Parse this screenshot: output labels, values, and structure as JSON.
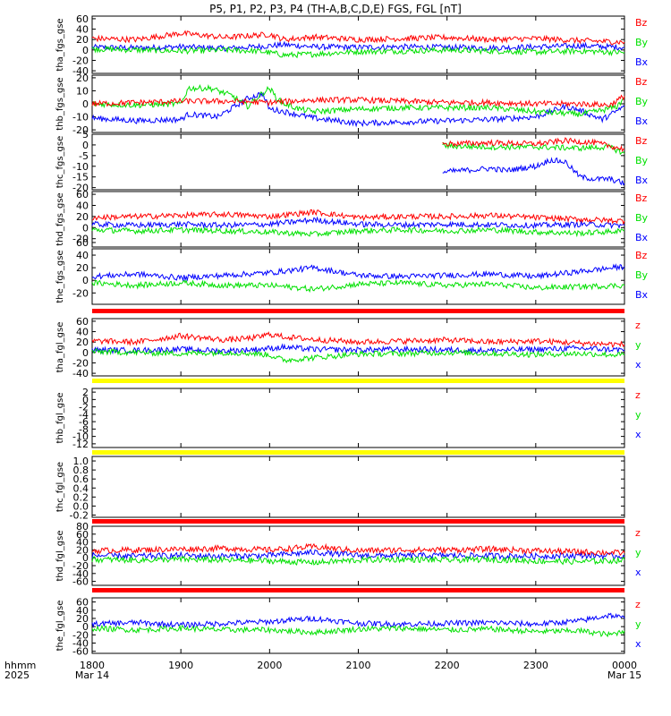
{
  "title": "P5, P1, P2, P3, P4 (TH-A,B,C,D,E) FGS, FGL [nT]",
  "time_axis": {
    "row_label_1": "hhmm",
    "row_label_2": "2025",
    "ticks": [
      {
        "hhmm": "1800",
        "date": "Mar 14"
      },
      {
        "hhmm": "1900",
        "date": ""
      },
      {
        "hhmm": "2000",
        "date": ""
      },
      {
        "hhmm": "2100",
        "date": ""
      },
      {
        "hhmm": "2200",
        "date": ""
      },
      {
        "hhmm": "2300",
        "date": ""
      },
      {
        "hhmm": "0000",
        "date": "Mar 15"
      }
    ]
  },
  "colors": {
    "z": "#ff0000",
    "y": "#00e000",
    "x": "#0000ff",
    "status_red": "#ff0000",
    "status_yellow": "#ffff00"
  },
  "chart_data": [
    {
      "type": "line",
      "ylabel": "tha_fgs_gse",
      "yticks": [
        "60",
        "40",
        "20",
        "0",
        "-20",
        "-40"
      ],
      "ylim": [
        -45,
        65
      ],
      "legend": [
        "Bz",
        "By",
        "Bx"
      ],
      "series": [
        {
          "name": "Bz",
          "x": [
            "1800",
            "1830",
            "1900",
            "1930",
            "1950",
            "2000",
            "2010",
            "2030",
            "2100",
            "2130",
            "2200",
            "2230",
            "2300",
            "2330",
            "0000"
          ],
          "values": [
            22,
            20,
            32,
            24,
            28,
            30,
            20,
            25,
            20,
            22,
            24,
            20,
            22,
            18,
            15
          ]
        },
        {
          "name": "By",
          "x": [
            "1800",
            "1830",
            "1900",
            "1930",
            "1950",
            "2000",
            "2010",
            "2030",
            "2100",
            "2130",
            "2200",
            "2230",
            "2300",
            "2330",
            "0000"
          ],
          "values": [
            2,
            0,
            -2,
            0,
            -2,
            -5,
            -10,
            -8,
            -3,
            -2,
            0,
            -2,
            -4,
            -2,
            -5
          ]
        },
        {
          "name": "Bx",
          "x": [
            "1800",
            "1830",
            "1900",
            "1930",
            "1950",
            "2000",
            "2010",
            "2030",
            "2100",
            "2130",
            "2200",
            "2230",
            "2300",
            "2330",
            "0000"
          ],
          "values": [
            5,
            4,
            6,
            3,
            6,
            8,
            10,
            6,
            5,
            6,
            5,
            4,
            6,
            8,
            5
          ]
        }
      ]
    },
    {
      "type": "line",
      "ylabel": "thb_fgs_gse",
      "yticks": [
        "20",
        "10",
        "0",
        "-10",
        "-20"
      ],
      "ylim": [
        -22,
        22
      ],
      "legend": [
        "Bz",
        "By",
        "Bx"
      ],
      "series": [
        {
          "name": "Bz",
          "x": [
            "1800",
            "1830",
            "1900",
            "1930",
            "2000",
            "2030",
            "2100",
            "2130",
            "2200",
            "2230",
            "2300",
            "2330",
            "2350",
            "0000"
          ],
          "values": [
            0,
            1,
            2,
            2,
            1,
            3,
            3,
            2,
            1,
            1,
            0,
            0,
            -1,
            6
          ]
        },
        {
          "name": "By",
          "x": [
            "1800",
            "1830",
            "1900",
            "1905",
            "1920",
            "1935",
            "1945",
            "1955",
            "2000",
            "2005",
            "2010",
            "2020",
            "2030",
            "2100",
            "2130",
            "2200",
            "2230",
            "2300",
            "2330",
            "2345",
            "2355",
            "0000"
          ],
          "values": [
            0,
            -1,
            0,
            12,
            12,
            6,
            -2,
            8,
            12,
            4,
            0,
            -4,
            -6,
            -4,
            -3,
            -3,
            -3,
            -6,
            -8,
            -5,
            -2,
            5
          ]
        },
        {
          "name": "Bx",
          "x": [
            "1800",
            "1830",
            "1900",
            "1905",
            "1925",
            "1945",
            "1955",
            "2000",
            "2010",
            "2030",
            "2100",
            "2130",
            "2200",
            "2230",
            "2300",
            "2320",
            "2330",
            "2345",
            "0000"
          ],
          "values": [
            -11,
            -13,
            -12,
            -8,
            -10,
            4,
            8,
            -4,
            -6,
            -11,
            -15,
            -14,
            -13,
            -12,
            -10,
            -2,
            -5,
            -12,
            -2
          ]
        }
      ]
    },
    {
      "type": "line",
      "ylabel": "thc_fgs_gse",
      "yticks": [
        "5",
        "0",
        "-5",
        "-10",
        "-15",
        "-20"
      ],
      "ylim": [
        -21,
        5
      ],
      "legend": [
        "Bz",
        "By",
        "Bx"
      ],
      "series": [
        {
          "name": "Bz",
          "x": [
            "2157",
            "2200",
            "2230",
            "2300",
            "2320",
            "2340",
            "0000"
          ],
          "values": [
            0.5,
            0.5,
            1,
            0.5,
            2,
            1,
            -2
          ]
        },
        {
          "name": "By",
          "x": [
            "2157",
            "2200",
            "2230",
            "2300",
            "2330",
            "2350",
            "0000"
          ],
          "values": [
            0,
            -0.5,
            -1,
            -1,
            -1.5,
            -1,
            -4
          ]
        },
        {
          "name": "Bx",
          "x": [
            "2157",
            "2200",
            "2230",
            "2240",
            "2300",
            "2310",
            "2320",
            "2330",
            "2340",
            "2350",
            "0000"
          ],
          "values": [
            -13,
            -12.5,
            -11,
            -12,
            -10,
            -7,
            -8,
            -15,
            -16,
            -16,
            -18
          ]
        }
      ]
    },
    {
      "type": "line",
      "ylabel": "thd_fgs_gse",
      "yticks": [
        "60",
        "40",
        "20",
        "0",
        "-20"
      ],
      "ylim": [
        -35,
        65
      ],
      "legend": [
        "Bz",
        "By",
        "Bx"
      ],
      "series": [
        {
          "name": "Bz",
          "x": [
            "1800",
            "1830",
            "1900",
            "1930",
            "2000",
            "2030",
            "2100",
            "2130",
            "2200",
            "2230",
            "2300",
            "2330",
            "0000"
          ],
          "values": [
            18,
            20,
            22,
            24,
            20,
            28,
            18,
            20,
            20,
            22,
            18,
            15,
            12
          ]
        },
        {
          "name": "By",
          "x": [
            "1800",
            "1830",
            "1900",
            "1930",
            "2000",
            "2030",
            "2100",
            "2130",
            "2200",
            "2230",
            "2300",
            "2330",
            "0000"
          ],
          "values": [
            -4,
            -6,
            -4,
            -6,
            -8,
            -12,
            -6,
            -4,
            -6,
            -4,
            -8,
            -10,
            -6
          ]
        },
        {
          "name": "Bx",
          "x": [
            "1800",
            "1830",
            "1900",
            "1930",
            "2000",
            "2030",
            "2100",
            "2130",
            "2200",
            "2230",
            "2300",
            "2330",
            "0000"
          ],
          "values": [
            6,
            4,
            6,
            4,
            6,
            14,
            6,
            5,
            6,
            5,
            4,
            6,
            4
          ]
        }
      ]
    },
    {
      "type": "line",
      "ylabel": "the_fgs_gse",
      "yticks": [
        "60",
        "40",
        "20",
        "0",
        "-20"
      ],
      "ylim": [
        -38,
        50
      ],
      "legend": [
        "Bz",
        "By",
        "Bx"
      ],
      "series": [
        {
          "name": "Bz",
          "x": [
            "1800",
            "0000"
          ],
          "values": [
            null,
            null
          ]
        },
        {
          "name": "By",
          "x": [
            "1800",
            "1830",
            "1900",
            "1930",
            "2000",
            "2030",
            "2100",
            "2130",
            "2200",
            "2230",
            "2300",
            "2330",
            "0000"
          ],
          "values": [
            -4,
            -8,
            -4,
            -8,
            -8,
            -14,
            -6,
            -4,
            -8,
            -6,
            -12,
            -10,
            -8
          ]
        },
        {
          "name": "Bx",
          "x": [
            "1800",
            "1830",
            "1900",
            "1930",
            "2000",
            "2030",
            "2100",
            "2130",
            "2200",
            "2230",
            "2300",
            "2330",
            "0000"
          ],
          "values": [
            6,
            10,
            4,
            8,
            12,
            20,
            8,
            6,
            8,
            10,
            6,
            14,
            22
          ]
        }
      ]
    },
    {
      "type": "line",
      "ylabel": "tha_fgl_gse",
      "yticks": [
        "60",
        "40",
        "20",
        "0",
        "-20",
        "-40"
      ],
      "ylim": [
        -45,
        65
      ],
      "legend": [
        "z",
        "y",
        "x"
      ],
      "series": [
        {
          "name": "z",
          "x": [
            "1800",
            "1830",
            "1900",
            "1930",
            "1950",
            "2000",
            "2010",
            "2030",
            "2100",
            "2130",
            "2200",
            "2230",
            "2300",
            "2330",
            "0000"
          ],
          "values": [
            22,
            20,
            32,
            24,
            28,
            35,
            30,
            25,
            20,
            22,
            24,
            20,
            22,
            18,
            15
          ]
        },
        {
          "name": "y",
          "x": [
            "1800",
            "1830",
            "1900",
            "1930",
            "1950",
            "2000",
            "2010",
            "2030",
            "2100",
            "2130",
            "2200",
            "2230",
            "2300",
            "2330",
            "0000"
          ],
          "values": [
            2,
            0,
            -2,
            0,
            -2,
            -5,
            -15,
            -10,
            -3,
            -2,
            0,
            -2,
            -4,
            -2,
            -5
          ]
        },
        {
          "name": "x",
          "x": [
            "1800",
            "1830",
            "1900",
            "1930",
            "1950",
            "2000",
            "2010",
            "2030",
            "2100",
            "2130",
            "2200",
            "2230",
            "2300",
            "2330",
            "0000"
          ],
          "values": [
            5,
            4,
            6,
            3,
            6,
            8,
            10,
            6,
            5,
            6,
            5,
            4,
            6,
            8,
            5
          ]
        }
      ]
    },
    {
      "type": "line",
      "ylabel": "thb_fgl_gse",
      "yticks": [
        "2",
        "0",
        "-2",
        "-4",
        "-6",
        "-8",
        "-10",
        "-12"
      ],
      "ylim": [
        -13,
        3
      ],
      "legend": [
        "z",
        "y",
        "x"
      ],
      "series": []
    },
    {
      "type": "line",
      "ylabel": "thc_fgl_gse",
      "yticks": [
        "1.0",
        "0.8",
        "0.6",
        "0.4",
        "0.2",
        "0.0",
        "-0.2"
      ],
      "ylim": [
        -0.25,
        1.1
      ],
      "legend": [],
      "series": []
    },
    {
      "type": "line",
      "ylabel": "thd_fgl_gse",
      "yticks": [
        "80",
        "60",
        "40",
        "20",
        "0",
        "-20",
        "-40",
        "-60"
      ],
      "ylim": [
        -70,
        80
      ],
      "legend": [
        "z",
        "y",
        "x"
      ],
      "series": [
        {
          "name": "z",
          "x": [
            "1800",
            "1830",
            "1900",
            "1930",
            "2000",
            "2030",
            "2100",
            "2130",
            "2200",
            "2230",
            "2300",
            "2330",
            "0000"
          ],
          "values": [
            18,
            20,
            22,
            24,
            20,
            28,
            18,
            20,
            20,
            22,
            18,
            15,
            12
          ]
        },
        {
          "name": "y",
          "x": [
            "1800",
            "1830",
            "1900",
            "1930",
            "2000",
            "2030",
            "2100",
            "2130",
            "2200",
            "2230",
            "2300",
            "2330",
            "0000"
          ],
          "values": [
            -4,
            -6,
            -4,
            -6,
            -8,
            -12,
            -6,
            -4,
            -6,
            -4,
            -8,
            -10,
            -6
          ]
        },
        {
          "name": "x",
          "x": [
            "1800",
            "1830",
            "1900",
            "1930",
            "2000",
            "2030",
            "2100",
            "2130",
            "2200",
            "2230",
            "2300",
            "2330",
            "0000"
          ],
          "values": [
            6,
            4,
            6,
            4,
            6,
            14,
            6,
            5,
            6,
            5,
            4,
            6,
            4
          ]
        }
      ]
    },
    {
      "type": "line",
      "ylabel": "the_fgl_gse",
      "yticks": [
        "60",
        "40",
        "20",
        "0",
        "-20",
        "-40",
        "-60"
      ],
      "ylim": [
        -65,
        70
      ],
      "legend": [
        "z",
        "y",
        "x"
      ],
      "series": [
        {
          "name": "z",
          "x": [
            "1800",
            "0000"
          ],
          "values": [
            null,
            null
          ]
        },
        {
          "name": "y",
          "x": [
            "1800",
            "1830",
            "1900",
            "1930",
            "2000",
            "2030",
            "2100",
            "2130",
            "2200",
            "2230",
            "2300",
            "2330",
            "2350",
            "0000"
          ],
          "values": [
            -4,
            -8,
            -4,
            -8,
            -8,
            -14,
            -6,
            -4,
            -8,
            -6,
            -12,
            -10,
            -20,
            -10
          ]
        },
        {
          "name": "x",
          "x": [
            "1800",
            "1830",
            "1900",
            "1930",
            "2000",
            "2030",
            "2100",
            "2130",
            "2200",
            "2230",
            "2300",
            "2330",
            "2350",
            "0000"
          ],
          "values": [
            6,
            10,
            4,
            8,
            12,
            20,
            8,
            6,
            8,
            10,
            6,
            14,
            28,
            20
          ]
        }
      ]
    }
  ]
}
